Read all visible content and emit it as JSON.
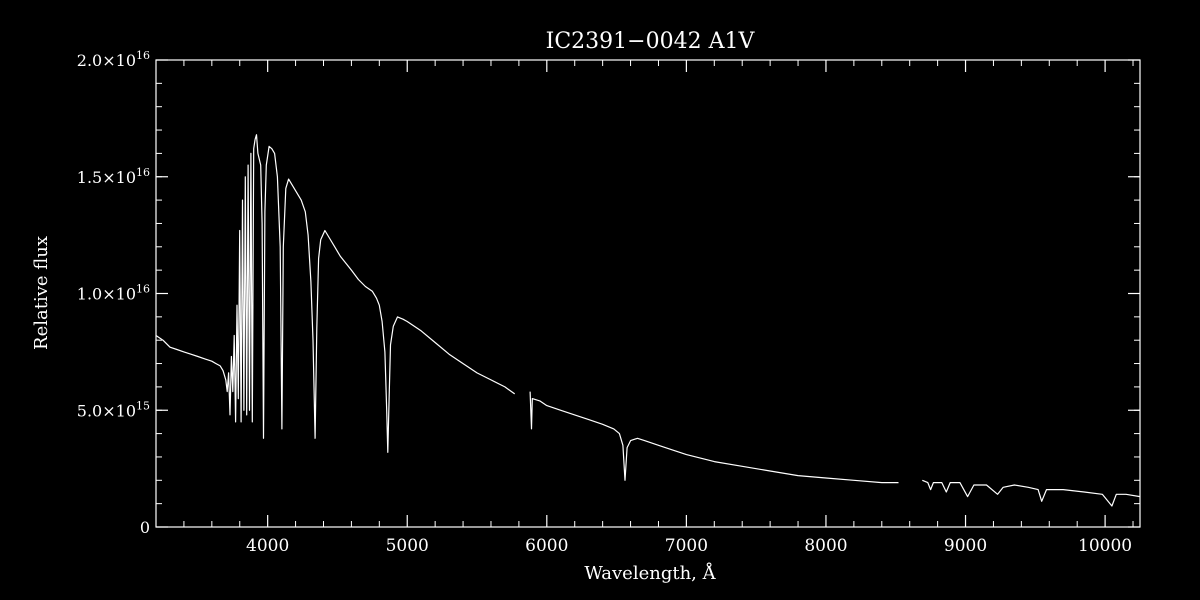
{
  "chart_data": {
    "type": "line",
    "title": "IC2391−0042  A1V",
    "xlabel": "Wavelength, Å",
    "ylabel": "Relative flux",
    "xlim": [
      3200,
      10250
    ],
    "ylim": [
      0,
      2e+16
    ],
    "grid": false,
    "legend": "none",
    "colors": {
      "background": "#000000",
      "foreground": "#ffffff"
    },
    "x_ticks": [
      {
        "value": 4000,
        "label": "4000"
      },
      {
        "value": 5000,
        "label": "5000"
      },
      {
        "value": 6000,
        "label": "6000"
      },
      {
        "value": 7000,
        "label": "7000"
      },
      {
        "value": 8000,
        "label": "8000"
      },
      {
        "value": 9000,
        "label": "9000"
      },
      {
        "value": 10000,
        "label": "10000"
      }
    ],
    "y_ticks": [
      {
        "value": 0,
        "mantissa": "0",
        "exp": ""
      },
      {
        "value": 5000000000000000.0,
        "mantissa": "5.0×10",
        "exp": "15"
      },
      {
        "value": 1e+16,
        "mantissa": "1.0×10",
        "exp": "16"
      },
      {
        "value": 1.5e+16,
        "mantissa": "1.5×10",
        "exp": "16"
      },
      {
        "value": 2e+16,
        "mantissa": "2.0×10",
        "exp": "16"
      }
    ],
    "series": [
      {
        "units": "1e16",
        "segments": [
          [
            [
              3200,
              0.82
            ],
            [
              3250,
              0.8
            ],
            [
              3300,
              0.77
            ],
            [
              3350,
              0.76
            ],
            [
              3400,
              0.75
            ],
            [
              3450,
              0.74
            ],
            [
              3500,
              0.73
            ],
            [
              3550,
              0.72
            ],
            [
              3600,
              0.71
            ],
            [
              3630,
              0.7
            ],
            [
              3660,
              0.69
            ],
            [
              3680,
              0.67
            ],
            [
              3700,
              0.63
            ],
            [
              3710,
              0.58
            ],
            [
              3720,
              0.66
            ],
            [
              3730,
              0.48
            ],
            [
              3740,
              0.73
            ],
            [
              3750,
              0.58
            ],
            [
              3760,
              0.82
            ],
            [
              3770,
              0.45
            ],
            [
              3780,
              0.95
            ],
            [
              3790,
              0.55
            ],
            [
              3800,
              1.27
            ],
            [
              3810,
              0.45
            ],
            [
              3820,
              1.4
            ],
            [
              3830,
              0.5
            ],
            [
              3840,
              1.5
            ],
            [
              3850,
              0.48
            ],
            [
              3860,
              1.55
            ],
            [
              3870,
              0.5
            ],
            [
              3880,
              1.6
            ],
            [
              3890,
              0.45
            ],
            [
              3900,
              1.62
            ],
            [
              3910,
              1.66
            ],
            [
              3920,
              1.68
            ],
            [
              3930,
              1.6
            ],
            [
              3950,
              1.55
            ],
            [
              3960,
              1.3
            ],
            [
              3970,
              0.38
            ],
            [
              3980,
              1.35
            ],
            [
              3990,
              1.55
            ],
            [
              4010,
              1.63
            ],
            [
              4030,
              1.62
            ],
            [
              4050,
              1.6
            ],
            [
              4070,
              1.5
            ],
            [
              4090,
              1.2
            ],
            [
              4102,
              0.42
            ],
            [
              4112,
              1.2
            ],
            [
              4130,
              1.45
            ],
            [
              4150,
              1.49
            ],
            [
              4180,
              1.46
            ],
            [
              4210,
              1.43
            ],
            [
              4240,
              1.4
            ],
            [
              4270,
              1.35
            ],
            [
              4290,
              1.25
            ],
            [
              4310,
              1.05
            ],
            [
              4325,
              0.8
            ],
            [
              4340,
              0.38
            ],
            [
              4352,
              0.85
            ],
            [
              4365,
              1.15
            ],
            [
              4380,
              1.23
            ],
            [
              4410,
              1.27
            ],
            [
              4440,
              1.24
            ],
            [
              4480,
              1.2
            ],
            [
              4520,
              1.16
            ],
            [
              4560,
              1.13
            ],
            [
              4600,
              1.1
            ],
            [
              4650,
              1.06
            ],
            [
              4700,
              1.03
            ],
            [
              4750,
              1.01
            ],
            [
              4780,
              0.98
            ],
            [
              4800,
              0.95
            ],
            [
              4820,
              0.88
            ],
            [
              4840,
              0.75
            ],
            [
              4853,
              0.5
            ],
            [
              4861,
              0.32
            ],
            [
              4870,
              0.55
            ],
            [
              4880,
              0.78
            ],
            [
              4900,
              0.86
            ],
            [
              4930,
              0.9
            ],
            [
              4970,
              0.89
            ],
            [
              5000,
              0.88
            ],
            [
              5100,
              0.84
            ],
            [
              5200,
              0.79
            ],
            [
              5300,
              0.74
            ],
            [
              5400,
              0.7
            ],
            [
              5500,
              0.66
            ],
            [
              5600,
              0.63
            ],
            [
              5700,
              0.6
            ],
            [
              5770,
              0.57
            ]
          ],
          [
            [
              5880,
              0.58
            ],
            [
              5890,
              0.42
            ],
            [
              5896,
              0.55
            ],
            [
              5950,
              0.54
            ],
            [
              6000,
              0.52
            ],
            [
              6100,
              0.5
            ],
            [
              6200,
              0.48
            ],
            [
              6300,
              0.46
            ],
            [
              6400,
              0.44
            ],
            [
              6480,
              0.42
            ],
            [
              6520,
              0.4
            ],
            [
              6545,
              0.35
            ],
            [
              6560,
              0.2
            ],
            [
              6575,
              0.34
            ],
            [
              6600,
              0.37
            ],
            [
              6650,
              0.38
            ],
            [
              6700,
              0.37
            ],
            [
              6800,
              0.35
            ],
            [
              6900,
              0.33
            ],
            [
              7000,
              0.31
            ],
            [
              7200,
              0.28
            ],
            [
              7400,
              0.26
            ],
            [
              7600,
              0.24
            ],
            [
              7800,
              0.22
            ],
            [
              8000,
              0.21
            ],
            [
              8200,
              0.2
            ],
            [
              8400,
              0.19
            ],
            [
              8520,
              0.19
            ]
          ],
          [
            [
              8690,
              0.2
            ],
            [
              8730,
              0.19
            ],
            [
              8750,
              0.16
            ],
            [
              8770,
              0.19
            ],
            [
              8830,
              0.19
            ],
            [
              8862,
              0.15
            ],
            [
              8890,
              0.19
            ],
            [
              8960,
              0.19
            ],
            [
              9015,
              0.13
            ],
            [
              9060,
              0.18
            ],
            [
              9150,
              0.18
            ],
            [
              9230,
              0.14
            ],
            [
              9270,
              0.17
            ],
            [
              9350,
              0.18
            ],
            [
              9450,
              0.17
            ],
            [
              9520,
              0.16
            ],
            [
              9546,
              0.11
            ],
            [
              9580,
              0.16
            ],
            [
              9700,
              0.16
            ],
            [
              9850,
              0.15
            ],
            [
              9980,
              0.14
            ],
            [
              10049,
              0.09
            ],
            [
              10080,
              0.14
            ],
            [
              10150,
              0.14
            ],
            [
              10250,
              0.13
            ]
          ]
        ]
      }
    ]
  }
}
